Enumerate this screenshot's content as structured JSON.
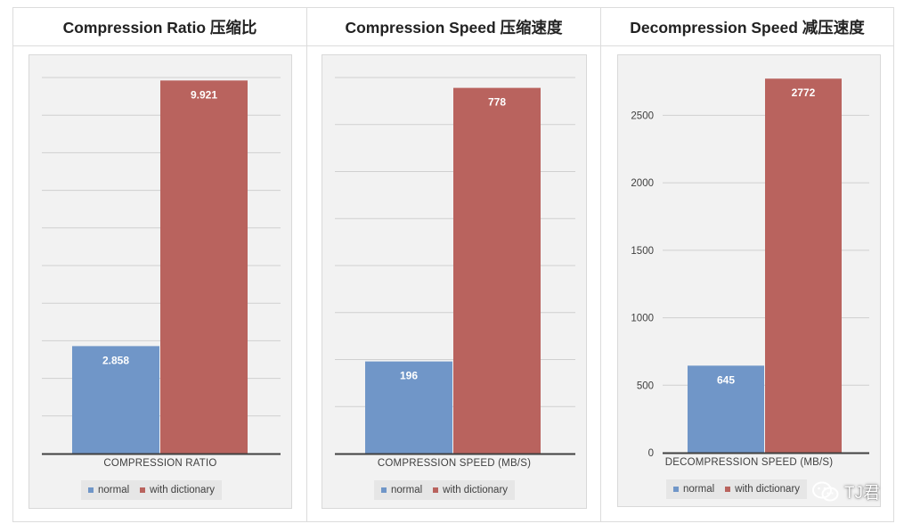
{
  "watermark": {
    "icon": "wechat-icon",
    "text": "TJ君"
  },
  "colors": {
    "normal": "#7096c8",
    "dictionary": "#b9635e",
    "gridline": "#d0d0d0",
    "axis": "#404040"
  },
  "chart_data": [
    {
      "type": "bar",
      "title": "Compression Ratio 压缩比",
      "xlabel": "COMPRESSION RATIO",
      "ylabel": "",
      "categories": [
        ""
      ],
      "series": [
        {
          "name": "normal",
          "values": [
            2.858
          ],
          "labels": [
            "2.858"
          ]
        },
        {
          "name": "with dictionary",
          "values": [
            9.921
          ],
          "labels": [
            "9.921"
          ]
        }
      ],
      "ylim": [
        0,
        10
      ],
      "yticks": [
        0,
        1,
        2,
        3,
        4,
        5,
        6,
        7,
        8,
        9,
        10
      ],
      "show_tick_labels": false,
      "grid": true,
      "legend": "bottom"
    },
    {
      "type": "bar",
      "title": "Compression Speed 压缩速度",
      "xlabel": "COMPRESSION SPEED (MB/S)",
      "ylabel": "",
      "categories": [
        ""
      ],
      "series": [
        {
          "name": "normal",
          "values": [
            196
          ],
          "labels": [
            "196"
          ]
        },
        {
          "name": "with dictionary",
          "values": [
            778
          ],
          "labels": [
            "778"
          ]
        }
      ],
      "ylim": [
        0,
        800
      ],
      "yticks": [
        0,
        100,
        200,
        300,
        400,
        500,
        600,
        700,
        800
      ],
      "show_tick_labels": false,
      "grid": true,
      "legend": "bottom"
    },
    {
      "type": "bar",
      "title": "Decompression Speed 减压速度",
      "xlabel": "DECOMPRESSION SPEED (MB/S)",
      "ylabel": "",
      "categories": [
        ""
      ],
      "series": [
        {
          "name": "normal",
          "values": [
            645
          ],
          "labels": [
            "645"
          ]
        },
        {
          "name": "with dictionary",
          "values": [
            2772
          ],
          "labels": [
            "2772"
          ]
        }
      ],
      "ylim": [
        0,
        2800
      ],
      "yticks": [
        0,
        500,
        1000,
        1500,
        2000,
        2500
      ],
      "show_tick_labels": true,
      "grid": true,
      "legend": "bottom"
    }
  ]
}
